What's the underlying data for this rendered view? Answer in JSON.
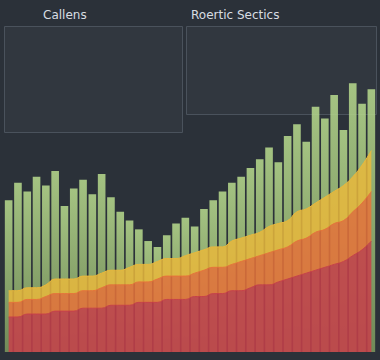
{
  "chart_data": {
    "type": "bar",
    "title": "Callens",
    "subtitle": "Roertic Sectics",
    "categories": [
      null,
      null,
      null,
      null,
      null,
      null,
      null,
      null,
      null,
      null,
      null,
      null,
      null,
      null,
      null,
      null,
      null,
      null,
      null,
      null,
      null,
      null,
      null,
      null,
      null,
      null,
      null,
      null,
      null,
      null,
      null,
      null,
      null,
      null,
      null,
      null,
      null,
      null,
      null,
      null
    ],
    "ylim": [
      0,
      100
    ],
    "yticks": [
      0,
      25,
      50,
      75,
      100
    ],
    "grid": false,
    "tick_labels": false,
    "stacked": true,
    "series": [
      {
        "type": "bar",
        "color": "#b9dc8e",
        "values": [
          52,
          58,
          55,
          60,
          57,
          62,
          50,
          56,
          59,
          54,
          61,
          53,
          48,
          45,
          42,
          38,
          36,
          40,
          44,
          46,
          43,
          49,
          52,
          55,
          58,
          60,
          63,
          66,
          70,
          65,
          74,
          78,
          72,
          84,
          80,
          88,
          76,
          92,
          85,
          90
        ]
      },
      {
        "type": "area",
        "color": "#c8404a",
        "values": [
          12,
          12,
          13,
          13,
          13,
          14,
          14,
          14,
          15,
          15,
          15,
          16,
          16,
          16,
          17,
          17,
          17,
          18,
          18,
          18,
          19,
          19,
          20,
          20,
          21,
          21,
          22,
          23,
          23,
          24,
          25,
          26,
          27,
          28,
          29,
          30,
          31,
          33,
          35,
          38
        ]
      },
      {
        "type": "area",
        "color": "#e8733a",
        "values": [
          5,
          5,
          5,
          5,
          6,
          6,
          6,
          6,
          6,
          6,
          7,
          7,
          7,
          7,
          7,
          7,
          8,
          8,
          8,
          8,
          8,
          9,
          9,
          9,
          9,
          10,
          10,
          10,
          11,
          11,
          11,
          12,
          12,
          13,
          13,
          14,
          14,
          15,
          16,
          17
        ]
      },
      {
        "type": "area",
        "color": "#e9b83c",
        "values": [
          4,
          4,
          4,
          4,
          4,
          5,
          5,
          5,
          5,
          5,
          5,
          5,
          5,
          6,
          6,
          6,
          6,
          6,
          6,
          7,
          7,
          7,
          7,
          7,
          8,
          8,
          8,
          8,
          9,
          9,
          9,
          10,
          10,
          10,
          11,
          11,
          12,
          12,
          13,
          14
        ]
      }
    ]
  }
}
